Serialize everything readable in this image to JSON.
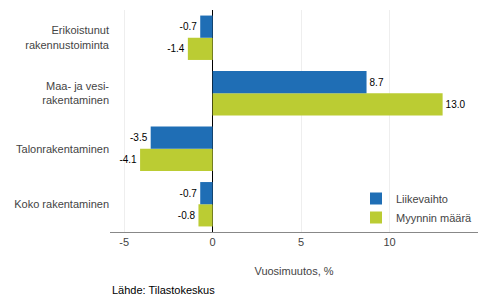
{
  "chart_data": {
    "type": "bar",
    "orientation": "horizontal",
    "categories": [
      "Koko rakentaminen",
      "Talonrakentaminen",
      "Maa- ja vesi-\nrakentaminen",
      "Erikoistunut\nrakennustoiminta"
    ],
    "series": [
      {
        "name": "Liikevaihto",
        "color": "#1F6EB5",
        "values": [
          -0.7,
          -3.5,
          8.7,
          -0.7
        ]
      },
      {
        "name": "Myynnin määrä",
        "color": "#BBCC33",
        "values": [
          -0.8,
          -4.1,
          13.0,
          -1.4
        ],
        "value_labels": [
          "-0.8",
          "-4.1",
          "13.0",
          "-1.4"
        ]
      }
    ],
    "xlabel": "Vuosimuutos, %",
    "xlim": [
      -5.8,
      15.0
    ],
    "xticks": [
      -5,
      0,
      5,
      10
    ],
    "grid": true,
    "legend": "lower right",
    "data_labels": true,
    "annotations": [
      "Lähde: Tilastokeskus"
    ]
  }
}
